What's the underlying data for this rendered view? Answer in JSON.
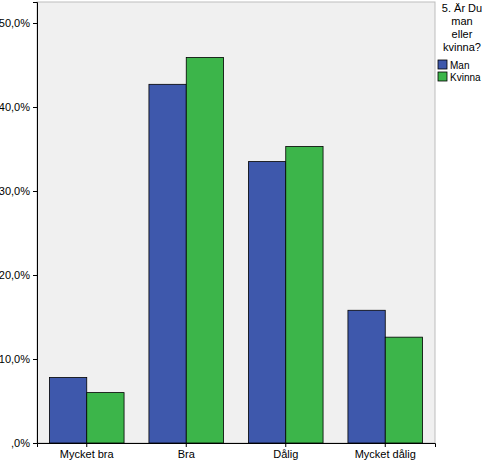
{
  "chart_data": {
    "type": "bar",
    "categories": [
      "Mycket bra",
      "Bra",
      "Dålig",
      "Mycket dålig"
    ],
    "series": [
      {
        "name": "Man",
        "color": "#3e58ac",
        "values": [
          7.8,
          42.7,
          33.5,
          15.8
        ]
      },
      {
        "name": "Kvinna",
        "color": "#3cb54a",
        "values": [
          6.0,
          45.9,
          35.3,
          12.6
        ]
      }
    ],
    "legend_title": "5. Är Du man eller kvinna?",
    "legend": "right",
    "grid": false,
    "ylim": [
      0,
      52.5
    ],
    "yticks": [
      {
        "value": 0,
        "label": ",0%"
      },
      {
        "value": 10,
        "label": "10,0%"
      },
      {
        "value": 20,
        "label": "20,0%"
      },
      {
        "value": 30,
        "label": "30,0%"
      },
      {
        "value": 40,
        "label": "40,0%"
      },
      {
        "value": 50,
        "label": "50,0%"
      }
    ]
  }
}
